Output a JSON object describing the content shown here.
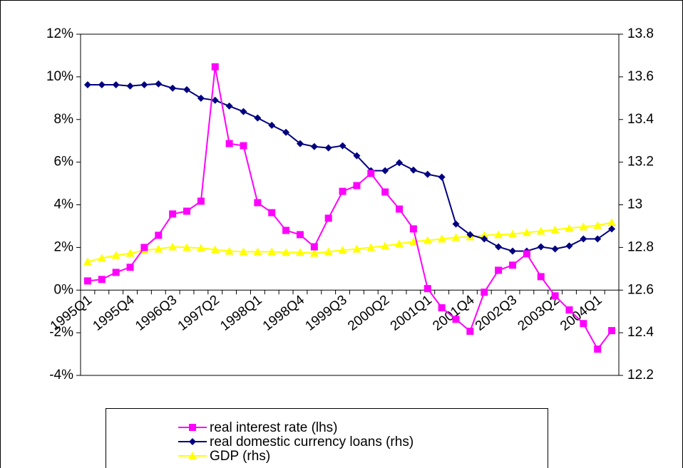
{
  "chart_data": {
    "type": "line",
    "categories": [
      "1995Q1",
      null,
      null,
      "1995Q4",
      null,
      null,
      "1996Q3",
      null,
      null,
      "1997Q2",
      null,
      null,
      "1998Q1",
      null,
      null,
      "1998Q4",
      null,
      null,
      "1999Q3",
      null,
      null,
      "2000Q2",
      null,
      null,
      "2001Q1",
      null,
      null,
      "2001Q4",
      null,
      null,
      "2002Q3",
      null,
      null,
      "2003Q2",
      null,
      null,
      "2004Q1",
      null
    ],
    "ylim": [
      -4,
      12
    ],
    "yticks": [
      {
        "value": -4,
        "label": "-4%"
      },
      {
        "value": -2,
        "label": "-2%"
      },
      {
        "value": 0,
        "label": "0%"
      },
      {
        "value": 2,
        "label": "2%"
      },
      {
        "value": 4,
        "label": "4%"
      },
      {
        "value": 6,
        "label": "6%"
      },
      {
        "value": 8,
        "label": "8%"
      },
      {
        "value": 10,
        "label": "10%"
      },
      {
        "value": 12,
        "label": "12%"
      }
    ],
    "y2lim": [
      12.2,
      13.8
    ],
    "y2ticks": [
      12.2,
      12.4,
      12.6,
      12.8,
      13,
      13.2,
      13.4,
      13.6,
      13.8
    ],
    "series": [
      {
        "name": "real interest rate (lhs)",
        "color": "#ff00ff",
        "marker": "square",
        "values": [
          0.43,
          0.5,
          0.83,
          1.07,
          2.0,
          2.57,
          3.57,
          3.7,
          4.17,
          10.47,
          6.87,
          6.77,
          4.1,
          3.63,
          2.8,
          2.6,
          2.03,
          3.37,
          4.63,
          4.9,
          5.47,
          4.6,
          3.8,
          2.87,
          0.07,
          -0.83,
          -1.37,
          -1.93,
          -0.1,
          0.93,
          1.17,
          1.7,
          0.63,
          -0.27,
          -0.93,
          -1.57,
          -2.77,
          -1.9
        ]
      },
      {
        "name": "real domestic currency loans (rhs)",
        "color": "#000080",
        "marker": "diamond",
        "axis": "y2",
        "values": [
          13.563,
          13.563,
          13.563,
          13.557,
          13.563,
          13.567,
          13.547,
          13.54,
          13.5,
          13.49,
          13.463,
          13.437,
          13.407,
          13.373,
          13.34,
          13.287,
          13.273,
          13.267,
          13.277,
          13.23,
          13.16,
          13.16,
          13.197,
          13.163,
          13.143,
          13.13,
          12.91,
          12.86,
          12.84,
          12.803,
          12.783,
          12.783,
          12.803,
          12.793,
          12.807,
          12.84,
          12.84,
          12.887
        ]
      },
      {
        "name": "GDP (rhs)",
        "color": "#ffff00",
        "marker": "triangle",
        "axis": "y2",
        "values": [
          12.733,
          12.75,
          12.763,
          12.773,
          12.787,
          12.793,
          12.803,
          12.8,
          12.797,
          12.79,
          12.783,
          12.78,
          12.78,
          12.78,
          12.777,
          12.777,
          12.773,
          12.78,
          12.787,
          12.793,
          12.8,
          12.807,
          12.817,
          12.827,
          12.833,
          12.84,
          12.847,
          12.85,
          12.857,
          12.86,
          12.863,
          12.87,
          12.877,
          12.883,
          12.89,
          12.897,
          12.903,
          12.917
        ]
      }
    ]
  }
}
